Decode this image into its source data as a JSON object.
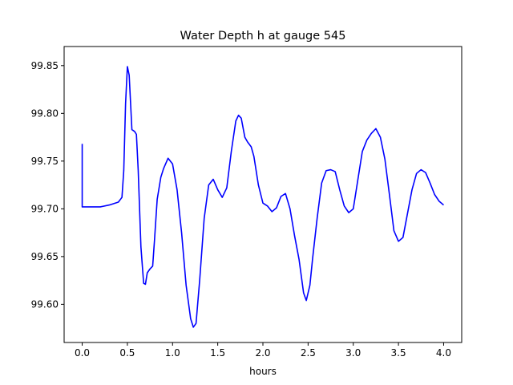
{
  "chart_data": {
    "type": "line",
    "title": "Water Depth h at gauge 545",
    "xlabel": "hours",
    "ylabel": "",
    "xlim": [
      -0.2,
      4.2
    ],
    "ylim": [
      99.56,
      99.87
    ],
    "xticks": [
      0.0,
      0.5,
      1.0,
      1.5,
      2.0,
      2.5,
      3.0,
      3.5,
      4.0
    ],
    "xtick_labels": [
      "0.0",
      "0.5",
      "1.0",
      "1.5",
      "2.0",
      "2.5",
      "3.0",
      "3.5",
      "4.0"
    ],
    "yticks": [
      99.6,
      99.65,
      99.7,
      99.75,
      99.8,
      99.85
    ],
    "ytick_labels": [
      "99.60",
      "99.65",
      "99.70",
      "99.75",
      "99.80",
      "99.85"
    ],
    "grid": false,
    "series": [
      {
        "color": "#0000ff",
        "x": [
          0.0,
          0.0,
          0.005,
          0.1,
          0.2,
          0.3,
          0.4,
          0.44,
          0.46,
          0.48,
          0.5,
          0.52,
          0.55,
          0.58,
          0.6,
          0.62,
          0.65,
          0.68,
          0.7,
          0.72,
          0.75,
          0.78,
          0.8,
          0.83,
          0.87,
          0.9,
          0.95,
          1.0,
          1.05,
          1.1,
          1.15,
          1.2,
          1.23,
          1.26,
          1.3,
          1.35,
          1.4,
          1.45,
          1.5,
          1.55,
          1.6,
          1.65,
          1.7,
          1.73,
          1.76,
          1.8,
          1.83,
          1.87,
          1.9,
          1.95,
          2.0,
          2.05,
          2.1,
          2.15,
          2.2,
          2.25,
          2.3,
          2.35,
          2.4,
          2.45,
          2.48,
          2.52,
          2.55,
          2.6,
          2.65,
          2.7,
          2.75,
          2.8,
          2.85,
          2.9,
          2.95,
          3.0,
          3.05,
          3.1,
          3.15,
          3.2,
          3.25,
          3.3,
          3.35,
          3.4,
          3.45,
          3.5,
          3.55,
          3.6,
          3.65,
          3.7,
          3.75,
          3.8,
          3.85,
          3.9,
          3.95,
          4.0
        ],
        "y": [
          99.768,
          99.702,
          99.702,
          99.702,
          99.702,
          99.704,
          99.707,
          99.712,
          99.74,
          99.81,
          99.849,
          99.84,
          99.783,
          99.781,
          99.778,
          99.74,
          99.66,
          99.622,
          99.621,
          99.633,
          99.637,
          99.64,
          99.667,
          99.71,
          99.733,
          99.742,
          99.753,
          99.747,
          99.72,
          99.675,
          99.62,
          99.585,
          99.576,
          99.58,
          99.625,
          99.69,
          99.725,
          99.731,
          99.72,
          99.712,
          99.722,
          99.76,
          99.792,
          99.798,
          99.795,
          99.775,
          99.77,
          99.765,
          99.755,
          99.725,
          99.706,
          99.703,
          99.697,
          99.701,
          99.713,
          99.716,
          99.7,
          99.672,
          99.647,
          99.612,
          99.604,
          99.62,
          99.648,
          99.69,
          99.727,
          99.74,
          99.741,
          99.739,
          99.72,
          99.703,
          99.696,
          99.7,
          99.73,
          99.76,
          99.772,
          99.779,
          99.784,
          99.775,
          99.752,
          99.715,
          99.677,
          99.666,
          99.67,
          99.695,
          99.72,
          99.737,
          99.741,
          99.738,
          99.727,
          99.715,
          99.708,
          99.704
        ]
      }
    ]
  }
}
